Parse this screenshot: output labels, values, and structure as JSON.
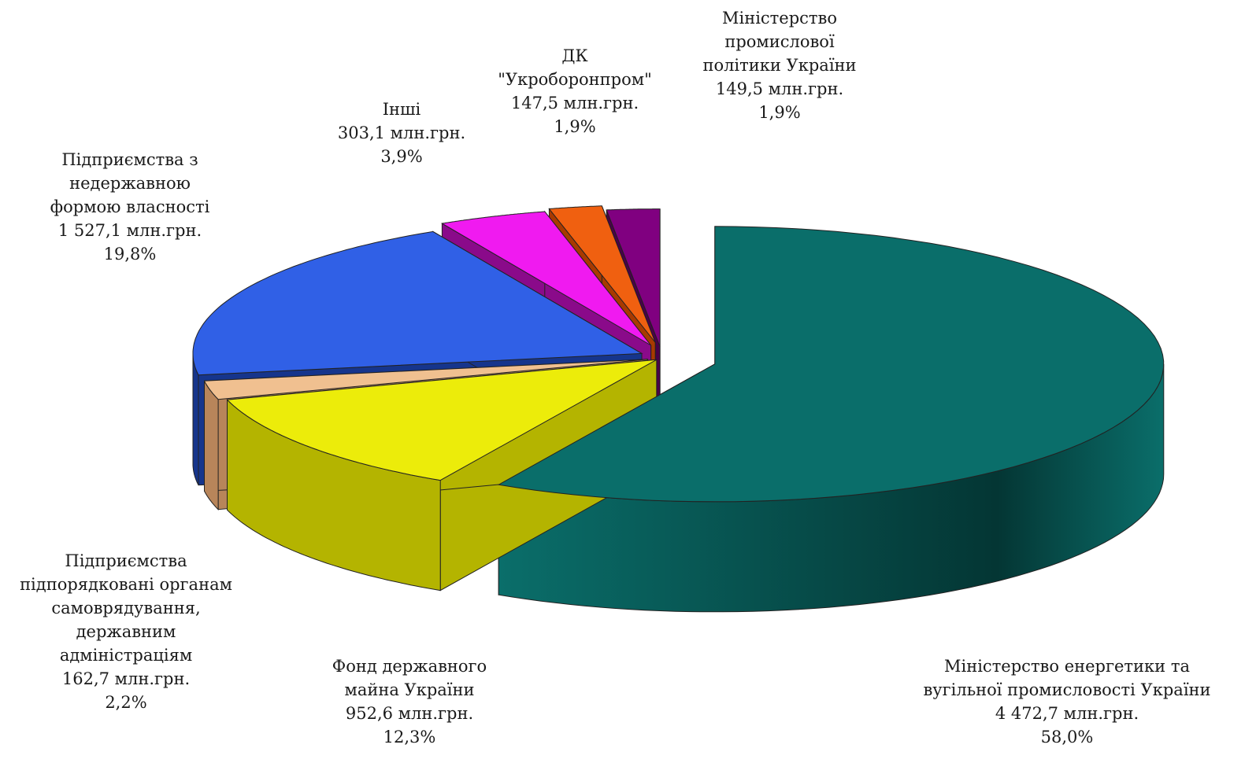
{
  "chart_data": {
    "type": "pie",
    "title": "",
    "three_d": true,
    "exploded": true,
    "legend": "none",
    "slices": [
      {
        "name_lines": [
          "Міністерство енергетики та",
          "вугільної промисловості України"
        ],
        "value_label": "4 472,7 млн.грн.",
        "percent_label": "58,0%",
        "value": 4472.7,
        "percent": 58.0,
        "color": "#0a6e6a",
        "side_color": "#064744"
      },
      {
        "name_lines": [
          "Фонд державного",
          "майна України"
        ],
        "value_label": "952,6 млн.грн.",
        "percent_label": "12,3%",
        "value": 952.6,
        "percent": 12.3,
        "color": "#ecec0a",
        "side_color": "#b4b400"
      },
      {
        "name_lines": [
          "Підприємства",
          "підпорядковані органам",
          "самоврядування,",
          "державним",
          "адміністраціям"
        ],
        "value_label": "162,7 млн.грн.",
        "percent_label": "2,2%",
        "value": 162.7,
        "percent": 2.2,
        "color": "#f0c090",
        "side_color": "#b8855a"
      },
      {
        "name_lines": [
          "Підприємства з",
          "недержавною",
          "формою власності"
        ],
        "value_label": "1 527,1 млн.грн.",
        "percent_label": "19,8%",
        "value": 1527.1,
        "percent": 19.8,
        "color": "#3060e6",
        "side_color": "#16358c"
      },
      {
        "name_lines": [
          "Інші"
        ],
        "value_label": "303,1 млн.грн.",
        "percent_label": "3,9%",
        "value": 303.1,
        "percent": 3.9,
        "color": "#f01af0",
        "side_color": "#8a0a8a"
      },
      {
        "name_lines": [
          "ДК",
          "\"Укроборонпром\""
        ],
        "value_label": "147,5 млн.грн.",
        "percent_label": "1,9%",
        "value": 147.5,
        "percent": 1.9,
        "color": "#f06010",
        "side_color": "#a83a00"
      },
      {
        "name_lines": [
          "Міністерство",
          "промислової",
          "політики України"
        ],
        "value_label": "149,5 млн.грн.",
        "percent_label": "1,9%",
        "value": 149.5,
        "percent": 1.9,
        "color": "#800080",
        "side_color": "#4a004a"
      }
    ]
  }
}
